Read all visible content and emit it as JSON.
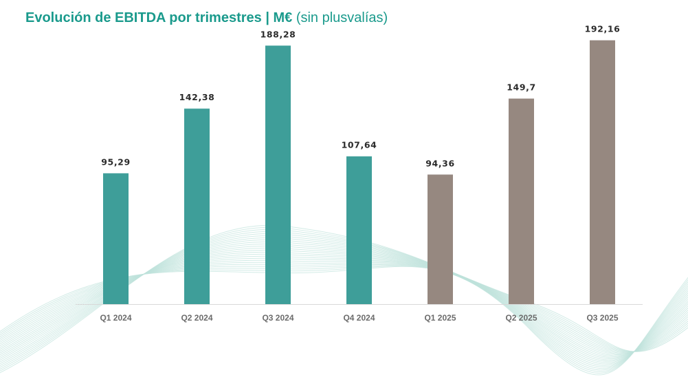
{
  "header": {
    "title_bold": "Evolución de EBITDA por trimestres | M€",
    "title_light": "(sin plusvalías)"
  },
  "colors": {
    "title": "#1a9a8c",
    "bar_2024": "#3e9e99",
    "bar_2025": "#968880",
    "axis": "#d8d8d8",
    "waves": "#bfe3dc"
  },
  "chart_data": {
    "type": "bar",
    "categories": [
      "Q1 2024",
      "Q2 2024",
      "Q3 2024",
      "Q4 2024",
      "Q1 2025",
      "Q2 2025",
      "Q3 2025"
    ],
    "values": [
      95.29,
      142.38,
      188.28,
      107.64,
      94.36,
      149.7,
      192.16
    ],
    "value_labels": [
      "95,29",
      "142,38",
      "188,28",
      "107,64",
      "94,36",
      "149,7",
      "192,16"
    ],
    "bar_color_keys": [
      "bar_2024",
      "bar_2024",
      "bar_2024",
      "bar_2024",
      "bar_2025",
      "bar_2025",
      "bar_2025"
    ],
    "ylim": [
      0,
      200
    ],
    "xlabel": "",
    "ylabel": "",
    "grid": false,
    "legend": "none"
  }
}
